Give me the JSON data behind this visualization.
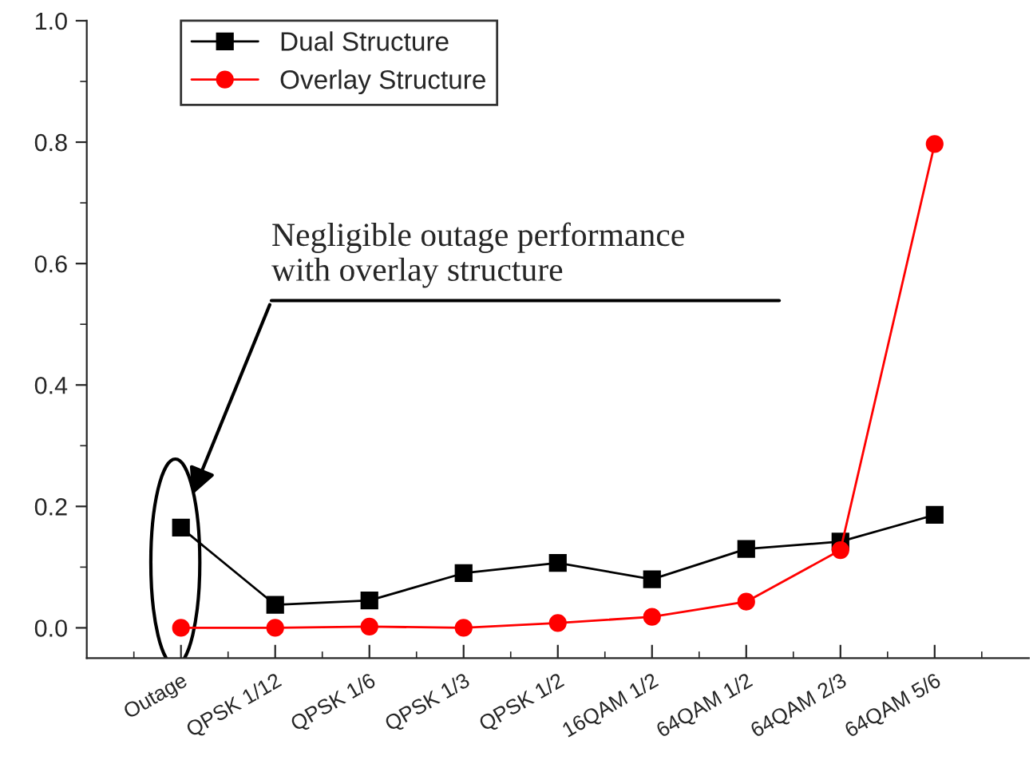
{
  "chart_data": {
    "type": "line",
    "categories": [
      "Outage",
      "QPSK 1/12",
      "QPSK 1/6",
      "QPSK 1/3",
      "QPSK 1/2",
      "16QAM 1/2",
      "64QAM 1/2",
      "64QAM 2/3",
      "64QAM 5/6"
    ],
    "series": [
      {
        "name": "Dual Structure",
        "color": "#000000",
        "marker": "square",
        "values": [
          0.165,
          0.038,
          0.045,
          0.09,
          0.107,
          0.08,
          0.13,
          0.142,
          0.186
        ]
      },
      {
        "name": "Overlay Structure",
        "color": "#ff0000",
        "marker": "circle",
        "values": [
          0.0,
          0.0,
          0.002,
          0.0,
          0.008,
          0.018,
          0.043,
          0.128,
          0.797
        ]
      }
    ],
    "ylim": [
      -0.05,
      1.0
    ],
    "yticks": [
      {
        "value": 0.0,
        "label": "0.0"
      },
      0.2,
      0.4,
      0.6,
      0.8,
      {
        "value": 1.0,
        "label": "1.0"
      }
    ],
    "annotations": [
      "Negligible outage performance\nwith overlay structure"
    ],
    "legend": "top left",
    "grid": false,
    "line_style": "solid"
  }
}
